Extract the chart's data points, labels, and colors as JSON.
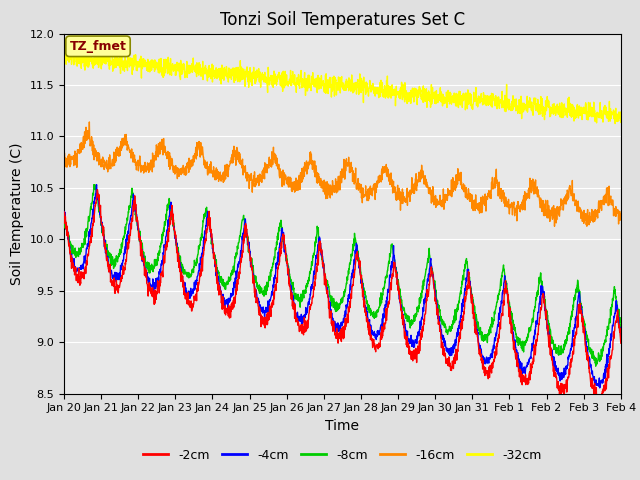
{
  "title": "Tonzi Soil Temperatures Set C",
  "xlabel": "Time",
  "ylabel": "Soil Temperature (C)",
  "annotation": "TZ_fmet",
  "ylim": [
    8.5,
    12.0
  ],
  "legend": [
    "-2cm",
    "-4cm",
    "-8cm",
    "-16cm",
    "-32cm"
  ],
  "colors": [
    "#ff0000",
    "#0000ff",
    "#00cc00",
    "#ff8800",
    "#ffff00"
  ],
  "bg_color": "#e0e0e0",
  "plot_bg": "#e8e8e8",
  "title_fontsize": 12,
  "axis_fontsize": 10,
  "tick_fontsize": 8,
  "annotation_box_color": "#ffff99",
  "annotation_text_color": "#880000"
}
